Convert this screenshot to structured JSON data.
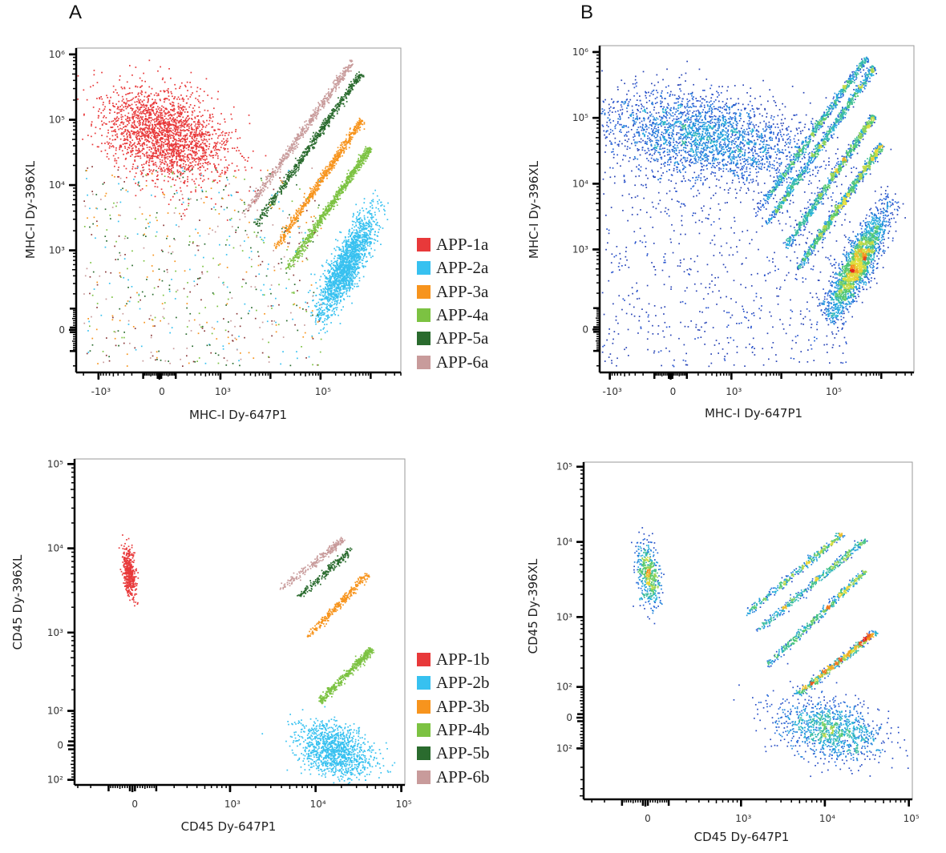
{
  "panels": [
    "A",
    "B"
  ],
  "chart_data": [
    {
      "panel": "A",
      "type": "scatter",
      "xlabel": "MHC-I Dy-647P1",
      "ylabel": "MHC-I Dy-396XL",
      "x_scale": "biexponential",
      "y_scale": "biexponential",
      "xlim": [
        -2800,
        4000000
      ],
      "ylim": [
        -260,
        1250000
      ],
      "xticks": [
        {
          "value": -1000,
          "label": "-10³"
        },
        {
          "value": 0,
          "label": "0"
        },
        {
          "value": 1000,
          "label": "10³"
        },
        {
          "value": 100000,
          "label": "10⁵"
        }
      ],
      "yticks": [
        {
          "value": 1000000,
          "label": "10⁶"
        },
        {
          "value": 100000,
          "label": "10⁵"
        },
        {
          "value": 10000,
          "label": "10⁴"
        },
        {
          "value": 1000,
          "label": "10³"
        },
        {
          "value": 0,
          "label": "0"
        }
      ],
      "coloring": "population",
      "grid": false,
      "legend_position": "right",
      "populations": [
        {
          "name": "APP-1a",
          "color": "#e8393a",
          "shape": "blob",
          "x_range": [
            -900,
            1300
          ],
          "y_range": [
            12000,
            300000
          ]
        },
        {
          "name": "APP-2a",
          "color": "#37c1f0",
          "shape": "streak",
          "from": [
            90000,
            60
          ],
          "to": [
            1500000,
            5500
          ],
          "spread": "wide"
        },
        {
          "name": "APP-3a",
          "color": "#f7941d",
          "shape": "streak",
          "from": [
            12000,
            1100
          ],
          "to": [
            650000,
            100000
          ]
        },
        {
          "name": "APP-4a",
          "color": "#7cc242",
          "shape": "streak",
          "from": [
            20000,
            500
          ],
          "to": [
            950000,
            38000
          ]
        },
        {
          "name": "APP-5a",
          "color": "#2a6b2e",
          "shape": "streak",
          "from": [
            5000,
            2500
          ],
          "to": [
            650000,
            550000
          ]
        },
        {
          "name": "APP-6a",
          "color": "#c89b9b",
          "shape": "streak",
          "from": [
            2800,
            3500
          ],
          "to": [
            430000,
            800000
          ]
        }
      ]
    },
    {
      "panel": "B",
      "type": "scatter",
      "xlabel": "MHC-I Dy-647P1",
      "ylabel": "MHC-I Dy-396XL",
      "x_scale": "biexponential",
      "y_scale": "biexponential",
      "xlim": [
        -1600,
        4500000
      ],
      "ylim": [
        -260,
        1250000
      ],
      "xticks": [
        {
          "value": -1000,
          "label": "-10³"
        },
        {
          "value": 0,
          "label": "0"
        },
        {
          "value": 1000,
          "label": "10³"
        },
        {
          "value": 100000,
          "label": "10⁵"
        }
      ],
      "yticks": [
        {
          "value": 1000000,
          "label": "10⁶"
        },
        {
          "value": 100000,
          "label": "10⁵"
        },
        {
          "value": 10000,
          "label": "10⁴"
        },
        {
          "value": 1000,
          "label": "10³"
        },
        {
          "value": 0,
          "label": "0"
        }
      ],
      "coloring": "density",
      "grid": false,
      "populations": [
        {
          "shape": "blob",
          "x_range": [
            -2000,
            40000
          ],
          "y_range": [
            12000,
            250000
          ]
        },
        {
          "shape": "streak",
          "from": [
            90000,
            60
          ],
          "to": [
            1600000,
            6000
          ],
          "spread": "wide"
        },
        {
          "shape": "streak",
          "from": [
            12000,
            1100
          ],
          "to": [
            700000,
            110000
          ]
        },
        {
          "shape": "streak",
          "from": [
            20000,
            500
          ],
          "to": [
            1000000,
            40000
          ]
        },
        {
          "shape": "streak",
          "from": [
            5000,
            2500
          ],
          "to": [
            700000,
            600000
          ]
        },
        {
          "shape": "streak",
          "from": [
            3000,
            3500
          ],
          "to": [
            500000,
            850000
          ]
        }
      ]
    },
    {
      "panel": "A",
      "type": "scatter",
      "xlabel": "CD45 Dy-647P1",
      "ylabel": "CD45 Dy-396XL",
      "x_scale": "biexponential",
      "y_scale": "biexponential",
      "xlim": [
        -330,
        110000
      ],
      "ylim": [
        -120,
        115000
      ],
      "xticks": [
        {
          "value": 0,
          "label": "0"
        },
        {
          "value": 1000,
          "label": "10³"
        },
        {
          "value": 10000,
          "label": "10⁴"
        },
        {
          "value": 100000,
          "label": "10⁵"
        }
      ],
      "yticks": [
        {
          "value": 100000,
          "label": "10⁵"
        },
        {
          "value": 10000,
          "label": "10⁴"
        },
        {
          "value": 1000,
          "label": "10³"
        },
        {
          "value": 100,
          "label": "10²"
        },
        {
          "value": 0,
          "label": "0"
        },
        {
          "value": -100,
          "label": "10²"
        }
      ],
      "coloring": "population",
      "grid": false,
      "legend_position": "right",
      "populations": [
        {
          "name": "APP-1b",
          "color": "#e8393a",
          "shape": "blob",
          "x_range": [
            -40,
            10
          ],
          "y_range": [
            2800,
            10000
          ]
        },
        {
          "name": "APP-2b",
          "color": "#37c1f0",
          "shape": "blob",
          "x_range": [
            6000,
            45000
          ],
          "y_range": [
            -90,
            60
          ]
        },
        {
          "name": "APP-3b",
          "color": "#f7941d",
          "shape": "streak",
          "from": [
            8000,
            900
          ],
          "to": [
            40000,
            5000
          ]
        },
        {
          "name": "APP-4b",
          "color": "#7cc242",
          "shape": "streak",
          "from": [
            11000,
            140
          ],
          "to": [
            45000,
            650
          ]
        },
        {
          "name": "APP-5b",
          "color": "#2a6b2e",
          "shape": "streak",
          "from": [
            6000,
            2600
          ],
          "to": [
            26000,
            10000
          ]
        },
        {
          "name": "APP-6b",
          "color": "#c89b9b",
          "shape": "streak",
          "from": [
            3800,
            3300
          ],
          "to": [
            21000,
            13000
          ]
        }
      ]
    },
    {
      "panel": "B",
      "type": "scatter",
      "xlabel": "CD45 Dy-647P1",
      "ylabel": "CD45 Dy-396XL",
      "x_scale": "biexponential",
      "y_scale": "biexponential",
      "xlim": [
        -383,
        110000
      ],
      "ylim": [
        -557,
        115000
      ],
      "xticks": [
        {
          "value": 0,
          "label": "0"
        },
        {
          "value": 1000,
          "label": "10³"
        },
        {
          "value": 10000,
          "label": "10⁴"
        },
        {
          "value": 100000,
          "label": "10⁵"
        }
      ],
      "yticks": [
        {
          "value": 100000,
          "label": "10⁵"
        },
        {
          "value": 10000,
          "label": "10⁴"
        },
        {
          "value": 1000,
          "label": "10³"
        },
        {
          "value": 100,
          "label": "10²"
        },
        {
          "value": 0,
          "label": "0"
        },
        {
          "value": -100,
          "label": "10²"
        }
      ],
      "coloring": "density",
      "grid": false,
      "populations": [
        {
          "shape": "blob",
          "x_range": [
            -40,
            60
          ],
          "y_range": [
            1500,
            10000
          ]
        },
        {
          "shape": "blob",
          "x_range": [
            2500,
            50000
          ],
          "y_range": [
            -150,
            60
          ]
        },
        {
          "shape": "streak",
          "from": [
            2000,
            220
          ],
          "to": [
            30000,
            4200
          ]
        },
        {
          "shape": "streak",
          "from": [
            4500,
            70
          ],
          "to": [
            40000,
            650
          ]
        },
        {
          "shape": "streak",
          "from": [
            1500,
            650
          ],
          "to": [
            30000,
            11000
          ]
        },
        {
          "shape": "streak",
          "from": [
            1100,
            1100
          ],
          "to": [
            16000,
            13000
          ]
        }
      ]
    }
  ]
}
